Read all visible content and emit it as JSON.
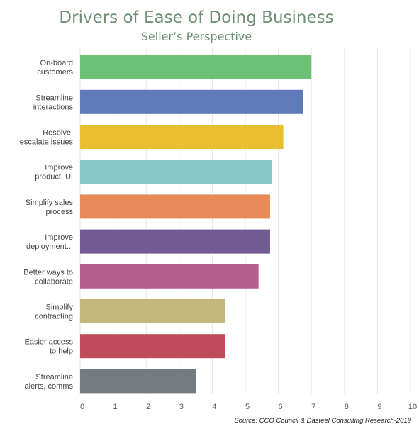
{
  "chart_data": {
    "type": "bar",
    "orientation": "horizontal",
    "title": "Drivers of Ease of Doing Business",
    "subtitle": "Seller’s Perspective",
    "categories": [
      [
        "On-board",
        "customers"
      ],
      [
        "Streamline",
        "interactions"
      ],
      [
        "Resolve,",
        "escalate issues"
      ],
      [
        "Improve",
        "product, UI"
      ],
      [
        "Simplify sales",
        "process"
      ],
      [
        "Improve",
        "deployment..."
      ],
      [
        "Better ways to",
        "collaborate"
      ],
      [
        "Simplify",
        "contracting"
      ],
      [
        "Easier access",
        "to help"
      ],
      [
        "Streamline",
        "alerts, comms"
      ]
    ],
    "values": [
      7.0,
      6.75,
      6.15,
      5.8,
      5.75,
      5.75,
      5.4,
      4.4,
      4.4,
      3.5
    ],
    "colors": [
      "#6cc177",
      "#5e7bb8",
      "#e9bf31",
      "#88c6cc",
      "#e88a57",
      "#725b92",
      "#b65d8d",
      "#c3b77e",
      "#c04b5a",
      "#757a80"
    ],
    "xlim": [
      0,
      10
    ],
    "xticks": [
      0,
      1,
      2,
      3,
      4,
      5,
      6,
      7,
      8,
      9,
      10
    ],
    "grid": true,
    "legend": "none",
    "source": "Source: CCO Council & Dasteel Consulting Research-2019"
  }
}
